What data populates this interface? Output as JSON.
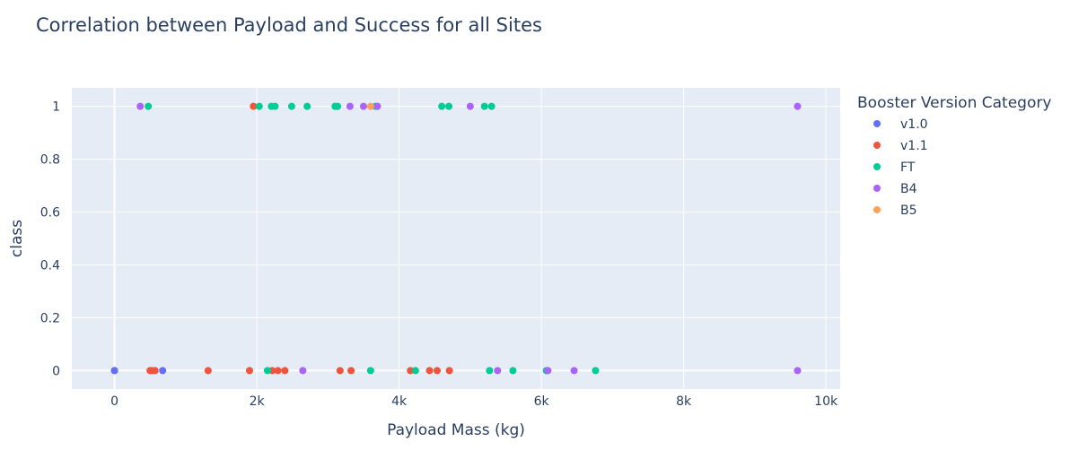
{
  "chart_data": {
    "type": "scatter",
    "title": "Correlation between Payload and Success for all Sites",
    "xlabel": "Payload Mass (kg)",
    "ylabel": "class",
    "xlim": [
      -600,
      10200
    ],
    "ylim": [
      -0.07,
      1.07
    ],
    "x_ticks": [
      {
        "value": 0,
        "label": "0"
      },
      {
        "value": 2000,
        "label": "2k"
      },
      {
        "value": 4000,
        "label": "4k"
      },
      {
        "value": 6000,
        "label": "6k"
      },
      {
        "value": 8000,
        "label": "8k"
      },
      {
        "value": 10000,
        "label": "10k"
      }
    ],
    "y_ticks": [
      {
        "value": 0,
        "label": "0"
      },
      {
        "value": 0.2,
        "label": "0.2"
      },
      {
        "value": 0.4,
        "label": "0.4"
      },
      {
        "value": 0.6,
        "label": "0.6"
      },
      {
        "value": 0.8,
        "label": "0.8"
      },
      {
        "value": 1,
        "label": "1"
      }
    ],
    "grid": true,
    "background_color": "#e5ecf6",
    "legend": {
      "title": "Booster Version Category",
      "placement": "right"
    },
    "series": [
      {
        "name": "v1.0",
        "color": "#636efa",
        "points": [
          [
            0,
            0
          ],
          [
            0,
            0
          ],
          [
            677,
            0
          ]
        ]
      },
      {
        "name": "v1.1",
        "color": "#ef553b",
        "points": [
          [
            500,
            0
          ],
          [
            525,
            0
          ],
          [
            570,
            0
          ],
          [
            1316,
            0
          ],
          [
            1898,
            0
          ],
          [
            1952,
            1
          ],
          [
            2296,
            0
          ],
          [
            2216,
            0
          ],
          [
            2395,
            0
          ],
          [
            3170,
            0
          ],
          [
            3325,
            0
          ],
          [
            4159,
            0
          ],
          [
            4428,
            0
          ],
          [
            4535,
            0
          ],
          [
            4707,
            0
          ]
        ]
      },
      {
        "name": "FT",
        "color": "#00cc96",
        "points": [
          [
            475,
            1
          ],
          [
            2034,
            1
          ],
          [
            2150,
            0
          ],
          [
            2205,
            1
          ],
          [
            2257,
            1
          ],
          [
            2490,
            1
          ],
          [
            2708,
            1
          ],
          [
            3100,
            1
          ],
          [
            3136,
            1
          ],
          [
            3600,
            0
          ],
          [
            3669,
            1
          ],
          [
            4230,
            0
          ],
          [
            4600,
            1
          ],
          [
            4700,
            1
          ],
          [
            5200,
            1
          ],
          [
            5300,
            1
          ],
          [
            5271,
            0
          ],
          [
            5600,
            0
          ],
          [
            6070,
            0
          ],
          [
            6761,
            0
          ]
        ]
      },
      {
        "name": "B4",
        "color": "#ab63fa",
        "points": [
          [
            362,
            1
          ],
          [
            2647,
            0
          ],
          [
            3310,
            1
          ],
          [
            3500,
            1
          ],
          [
            3696,
            1
          ],
          [
            5000,
            1
          ],
          [
            5384,
            0
          ],
          [
            6092,
            0
          ],
          [
            6460,
            0
          ],
          [
            9600,
            1
          ],
          [
            9600,
            0
          ]
        ]
      },
      {
        "name": "B5",
        "color": "#ffa15a",
        "points": [
          [
            3600,
            1
          ]
        ]
      }
    ]
  }
}
